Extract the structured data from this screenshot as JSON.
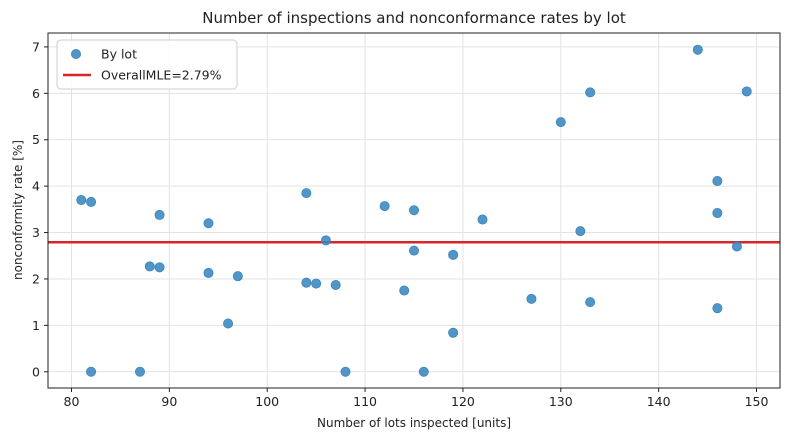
{
  "chart_data": {
    "type": "scatter",
    "title": "Number of inspections and nonconformance rates by lot",
    "xlabel": "Number of lots inspected [units]",
    "ylabel": "nonconformity rate [%]",
    "xlim": [
      77.6,
      152.4
    ],
    "ylim": [
      -0.35,
      7.3
    ],
    "xticks": [
      "80",
      "90",
      "100",
      "110",
      "120",
      "130",
      "140",
      "150"
    ],
    "yticks": [
      "0",
      "1",
      "2",
      "3",
      "4",
      "5",
      "6",
      "7"
    ],
    "grid": true,
    "legend_position": "top-left",
    "series": [
      {
        "name": "By lot",
        "kind": "points",
        "color": "#3a86bf",
        "points": [
          {
            "x": 81,
            "y": 3.7
          },
          {
            "x": 82,
            "y": 3.66
          },
          {
            "x": 82,
            "y": 0.0
          },
          {
            "x": 87,
            "y": 0.0
          },
          {
            "x": 88,
            "y": 2.27
          },
          {
            "x": 89,
            "y": 3.38
          },
          {
            "x": 89,
            "y": 2.25
          },
          {
            "x": 94,
            "y": 3.2
          },
          {
            "x": 94,
            "y": 2.13
          },
          {
            "x": 96,
            "y": 1.04
          },
          {
            "x": 97,
            "y": 2.06
          },
          {
            "x": 104,
            "y": 3.85
          },
          {
            "x": 104,
            "y": 1.92
          },
          {
            "x": 105,
            "y": 1.9
          },
          {
            "x": 106,
            "y": 2.83
          },
          {
            "x": 107,
            "y": 1.87
          },
          {
            "x": 108,
            "y": 0.0
          },
          {
            "x": 112,
            "y": 3.57
          },
          {
            "x": 114,
            "y": 1.75
          },
          {
            "x": 115,
            "y": 3.48
          },
          {
            "x": 115,
            "y": 2.61
          },
          {
            "x": 116,
            "y": 0.0
          },
          {
            "x": 119,
            "y": 2.52
          },
          {
            "x": 119,
            "y": 0.84
          },
          {
            "x": 122,
            "y": 3.28
          },
          {
            "x": 127,
            "y": 1.57
          },
          {
            "x": 130,
            "y": 5.38
          },
          {
            "x": 132,
            "y": 3.03
          },
          {
            "x": 133,
            "y": 6.02
          },
          {
            "x": 133,
            "y": 1.5
          },
          {
            "x": 144,
            "y": 6.94
          },
          {
            "x": 146,
            "y": 4.11
          },
          {
            "x": 146,
            "y": 3.42
          },
          {
            "x": 146,
            "y": 1.37
          },
          {
            "x": 148,
            "y": 2.7
          },
          {
            "x": 149,
            "y": 6.04
          }
        ]
      },
      {
        "name": "OverallMLE=2.79%",
        "kind": "hline",
        "color": "#d62728",
        "value": 2.79
      }
    ]
  }
}
